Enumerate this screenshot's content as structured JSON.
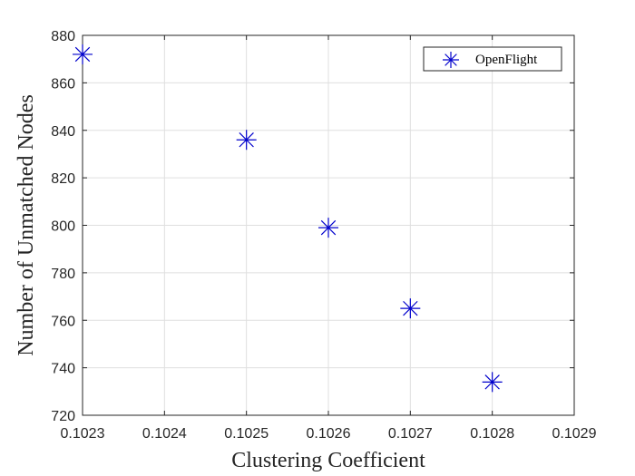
{
  "chart_data": {
    "type": "scatter",
    "title": "",
    "xlabel": "Clustering Coefficient",
    "ylabel": "Number of Unmatched Nodes",
    "xlim": [
      0.1023,
      0.1029
    ],
    "ylim": [
      720,
      880
    ],
    "xticks": [
      "0.1023",
      "0.1024",
      "0.1025",
      "0.1026",
      "0.1027",
      "0.1028",
      "0.1029"
    ],
    "yticks": [
      "720",
      "740",
      "760",
      "780",
      "800",
      "820",
      "840",
      "860",
      "880"
    ],
    "grid": true,
    "legend_position": "top-right",
    "series": [
      {
        "name": "OpenFlight",
        "marker": "asterisk",
        "color": "#0000cc",
        "x": [
          0.1023,
          0.1025,
          0.1026,
          0.1027,
          0.1028
        ],
        "y": [
          872,
          836,
          799,
          765,
          734
        ]
      }
    ]
  }
}
